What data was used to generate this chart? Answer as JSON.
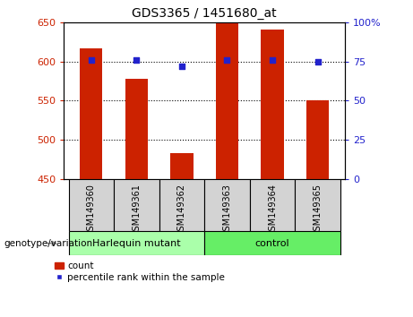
{
  "title": "GDS3365 / 1451680_at",
  "samples": [
    "GSM149360",
    "GSM149361",
    "GSM149362",
    "GSM149363",
    "GSM149364",
    "GSM149365"
  ],
  "count_values": [
    617,
    578,
    483,
    650,
    641,
    550
  ],
  "percentile_values": [
    76,
    76,
    72,
    76,
    76,
    75
  ],
  "ylim_left": [
    450,
    650
  ],
  "yticks_left": [
    450,
    500,
    550,
    600,
    650
  ],
  "ylim_right": [
    0,
    100
  ],
  "yticks_right": [
    0,
    25,
    50,
    75,
    100
  ],
  "bar_color": "#cc2200",
  "dot_color": "#2222cc",
  "group_labels": [
    "Harlequin mutant",
    "control"
  ],
  "group_ranges": [
    [
      0,
      3
    ],
    [
      3,
      6
    ]
  ],
  "group_color_left": "#aaffaa",
  "group_color_right": "#66ee66",
  "sample_bg_color": "#d3d3d3",
  "xlabel_label": "genotype/variation",
  "legend_count_label": "count",
  "legend_percentile_label": "percentile rank within the sample",
  "tick_color_left": "#cc2200",
  "tick_color_right": "#2222cc",
  "bar_width": 0.5,
  "figsize": [
    4.61,
    3.54
  ],
  "dpi": 100
}
